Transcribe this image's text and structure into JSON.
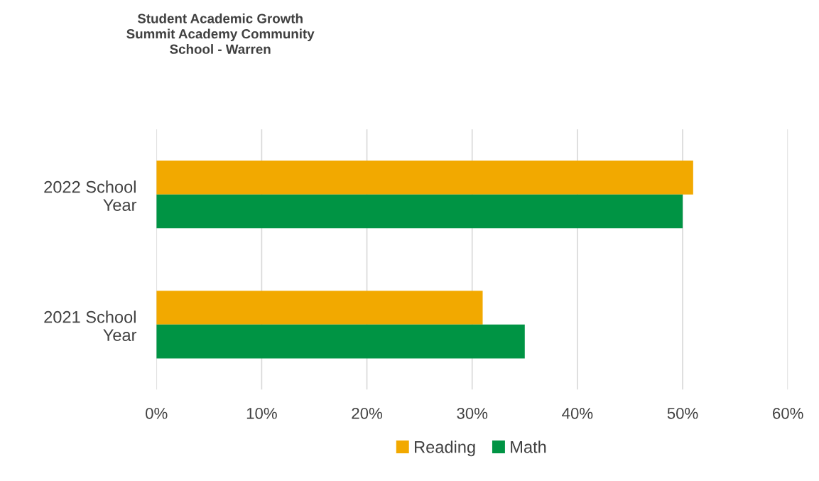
{
  "chart_data": {
    "type": "bar",
    "orientation": "horizontal",
    "title": "Student Academic Growth\nSummit Academy Community\nSchool - Warren",
    "categories": [
      "2022 School Year",
      "2021 School Year"
    ],
    "series": [
      {
        "name": "Reading",
        "color": "#f2a900",
        "values": [
          51,
          31
        ]
      },
      {
        "name": "Math",
        "color": "#009444",
        "values": [
          50,
          35
        ]
      }
    ],
    "xlim": [
      0,
      60
    ],
    "xticks": [
      {
        "value": 0,
        "label": "0%"
      },
      {
        "value": 10,
        "label": "10%"
      },
      {
        "value": 20,
        "label": "20%"
      },
      {
        "value": 30,
        "label": "30%"
      },
      {
        "value": 40,
        "label": "40%"
      },
      {
        "value": 50,
        "label": "50%"
      },
      {
        "value": 60,
        "label": "60%"
      }
    ],
    "grid": "x",
    "legend": "bottom"
  }
}
